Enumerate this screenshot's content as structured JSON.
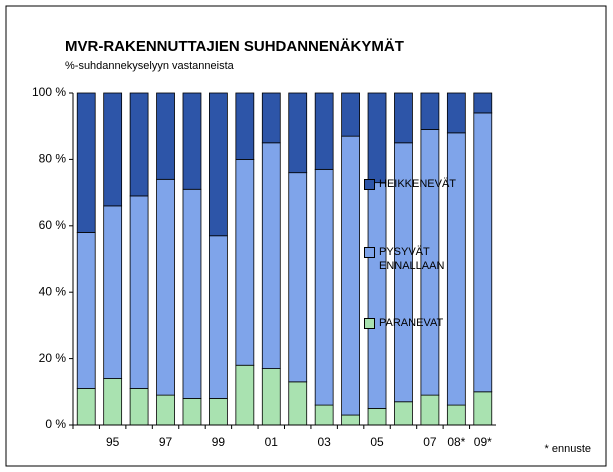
{
  "chart_data": {
    "type": "stacked_bar",
    "title": "MVR-RAKENNUTTAJIEN SUHDANNENÄKYMÄT",
    "subtitle": "%-suhdannekyselyyn vastanneista",
    "annotation": "* ennuste",
    "categories": [
      null,
      "95",
      null,
      "97",
      null,
      "99",
      null,
      "01",
      null,
      "03",
      null,
      "05",
      null,
      "07",
      "08*",
      "09*"
    ],
    "series": [
      {
        "name": "PARANEVAT",
        "color": "#a9e2b0",
        "values": [
          11,
          14,
          11,
          9,
          8,
          8,
          18,
          17,
          13,
          6,
          3,
          5,
          7,
          9,
          6,
          10
        ]
      },
      {
        "name": "PYSYVÄT ENNALLAAN",
        "color": "#7fa4ea",
        "values": [
          47,
          52,
          58,
          65,
          63,
          49,
          62,
          68,
          63,
          71,
          84,
          68,
          78,
          80,
          82,
          84
        ]
      },
      {
        "name": "HEIKKENEVÄT",
        "color": "#2d55a8",
        "values": [
          42,
          34,
          31,
          26,
          29,
          43,
          20,
          15,
          24,
          23,
          13,
          27,
          15,
          11,
          12,
          6
        ]
      }
    ],
    "ylim": [
      0,
      100
    ],
    "yticks": [
      {
        "value": 0,
        "label": "0 %"
      },
      {
        "value": 20,
        "label": "20 %"
      },
      {
        "value": 40,
        "label": "40 %"
      },
      {
        "value": 60,
        "label": "60 %"
      },
      {
        "value": 80,
        "label": "80 %"
      },
      {
        "value": 100,
        "label": "100 %"
      }
    ],
    "legend": "right"
  }
}
